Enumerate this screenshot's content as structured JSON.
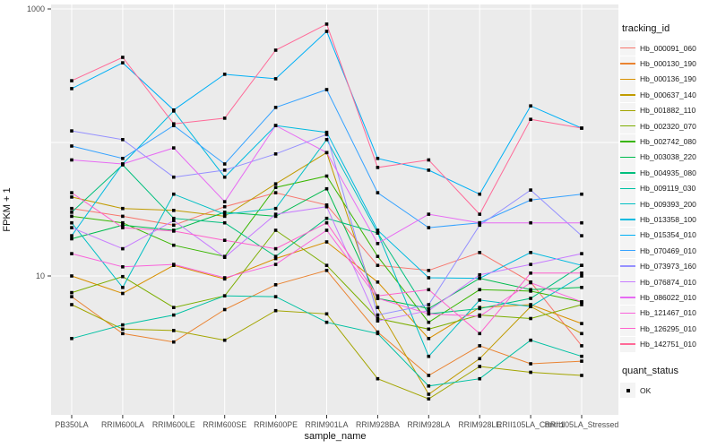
{
  "figure": {
    "y_axis": {
      "title": "FPKM + 1",
      "scale": "log10",
      "tick_labels": [
        "1000",
        "10"
      ],
      "tick_values": [
        1000,
        10
      ],
      "gridline_values": [
        1000,
        100,
        10
      ]
    },
    "x_axis": {
      "title": "sample_name"
    },
    "legend": {
      "tracking_title": "tracking_id",
      "quant_title": "quant_status",
      "quant_items": [
        {
          "label": "OK"
        }
      ]
    },
    "colors": {
      "panel_bg": "#EBEBEB",
      "grid": "#FFFFFF",
      "key_bg": "#F4F4F4",
      "tick_text": "#4D4D4D",
      "axis_text": "#111111",
      "point": "#000000"
    }
  },
  "chart_data": {
    "type": "line",
    "title": "",
    "xlabel": "sample_name",
    "ylabel": "FPKM + 1",
    "y_scale": "log10",
    "ylim": [
      0.9,
      1100
    ],
    "grid": true,
    "legend_position": "right",
    "point_shape": "black-square",
    "x_categories": [
      "PB350LA",
      "RRIM600LA",
      "RRIM600LE",
      "RRIM600SE",
      "RRIM600PE",
      "RRIM901LA",
      "RRIM928BA",
      "RRIM928LA",
      "RRIM928LE",
      "RRII105LA_Control",
      "RRII105LA_Stressed"
    ],
    "series": [
      {
        "name": "Hb_000091_060",
        "color": "#F8766D",
        "values": [
          32,
          28,
          24,
          33,
          42,
          34,
          12,
          11,
          15,
          9,
          3
        ]
      },
      {
        "name": "Hb_000130_190",
        "color": "#EA8331",
        "values": [
          7,
          3.7,
          3.2,
          5.6,
          8.6,
          11,
          3.8,
          1.8,
          3,
          2.2,
          2.3
        ]
      },
      {
        "name": "Hb_000136_190",
        "color": "#D89000",
        "values": [
          10,
          7.4,
          12,
          9.5,
          13.5,
          18,
          9,
          3.4,
          5.8,
          6.1,
          4.4
        ]
      },
      {
        "name": "Hb_000637_140",
        "color": "#C09B00",
        "values": [
          39,
          32,
          31,
          28,
          49,
          84,
          5.8,
          1.3,
          2.4,
          5.9,
          3.7
        ]
      },
      {
        "name": "Hb_001882_110",
        "color": "#A3A500",
        "values": [
          6.1,
          4,
          3.9,
          3.3,
          5.5,
          5.2,
          1.7,
          1.2,
          2.1,
          1.9,
          1.8
        ]
      },
      {
        "name": "Hb_002320_070",
        "color": "#7CAE00",
        "values": [
          7.5,
          9.9,
          5.8,
          7.1,
          22,
          12,
          4.8,
          4,
          5.1,
          4.8,
          6.1
        ]
      },
      {
        "name": "Hb_002742_080",
        "color": "#39B600",
        "values": [
          28,
          25,
          17,
          14,
          46,
          56,
          14,
          4.5,
          7.9,
          7.7,
          6.4
        ]
      },
      {
        "name": "Hb_003038_220",
        "color": "#00BB4E",
        "values": [
          19,
          24,
          22,
          30,
          28,
          45,
          6.8,
          5.7,
          9.6,
          7.9,
          8.2
        ]
      },
      {
        "name": "Hb_004935_080",
        "color": "#00BF7D",
        "values": [
          30,
          68,
          27,
          25,
          14,
          27,
          21,
          5.2,
          5.7,
          6.8,
          12
        ]
      },
      {
        "name": "Hb_009119_030",
        "color": "#00C1A3",
        "values": [
          3.4,
          4.3,
          5.1,
          7.1,
          7,
          4.5,
          3.7,
          1.5,
          1.7,
          3.3,
          2.5
        ]
      },
      {
        "name": "Hb_009393_200",
        "color": "#00BFC4",
        "values": [
          25,
          8.2,
          41,
          29,
          32,
          105,
          21,
          2.5,
          6.6,
          5.9,
          10
        ]
      },
      {
        "name": "Hb_013358_100",
        "color": "#00BAE0",
        "values": [
          20,
          69,
          172,
          55,
          134,
          119,
          22,
          9.7,
          9.6,
          15,
          12
        ]
      },
      {
        "name": "Hb_015354_010",
        "color": "#00B0F6",
        "values": [
          253,
          395,
          175,
          324,
          300,
          680,
          76,
          62,
          41,
          188,
          128
        ]
      },
      {
        "name": "Hb_070469_010",
        "color": "#35A2FF",
        "values": [
          94,
          76,
          134,
          69,
          183,
          249,
          42,
          23,
          25,
          37,
          41
        ]
      },
      {
        "name": "Hb_073973_160",
        "color": "#9590FF",
        "values": [
          122,
          105,
          55,
          62,
          82,
          115,
          5.1,
          6.1,
          24,
          44,
          20
        ]
      },
      {
        "name": "Hb_076874_010",
        "color": "#C77CFF",
        "values": [
          23,
          16,
          26,
          13.8,
          29,
          33,
          4.6,
          5.5,
          10.2,
          12.2,
          14.7
        ]
      },
      {
        "name": "Hb_086022_010",
        "color": "#E76BF3",
        "values": [
          74,
          69,
          91,
          36,
          134,
          84,
          17.5,
          29,
          25,
          25,
          25
        ]
      },
      {
        "name": "Hb_121467_010",
        "color": "#FA62DB",
        "values": [
          14.7,
          11.7,
          12.2,
          9.7,
          12.2,
          22,
          6.8,
          5.2,
          5,
          8.9,
          6.4
        ]
      },
      {
        "name": "Hb_126295_010",
        "color": "#FF61CC",
        "values": [
          42,
          23,
          21.7,
          18.5,
          16,
          25,
          7.1,
          7.9,
          3.7,
          10.5,
          10.5
        ]
      },
      {
        "name": "Hb_142751_010",
        "color": "#FF6A98",
        "values": [
          290,
          434,
          138,
          152,
          491,
          770,
          65,
          74,
          29,
          149,
          128
        ]
      }
    ]
  }
}
